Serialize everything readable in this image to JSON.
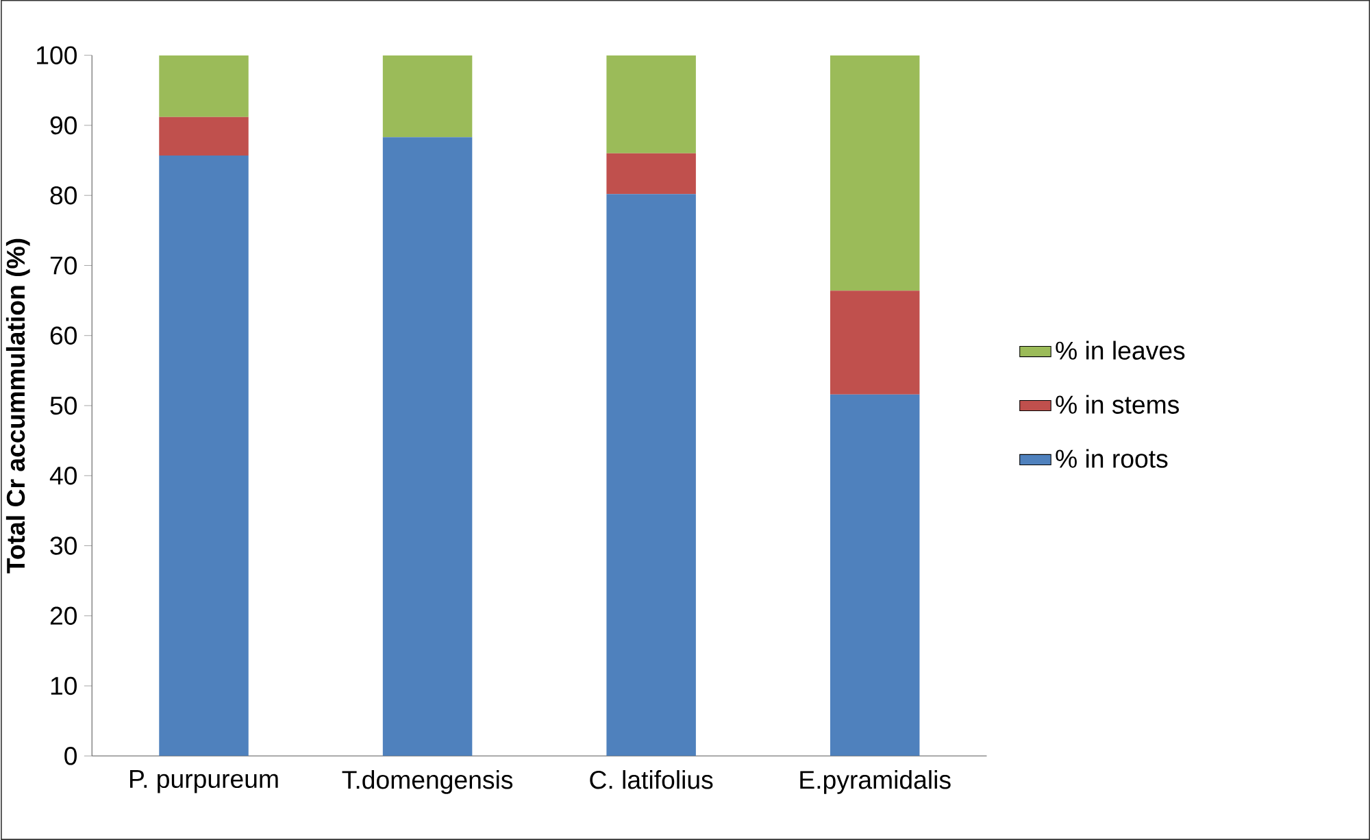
{
  "chart_data": {
    "type": "bar",
    "stacked": true,
    "ylabel": "**Total Cr accummulation (%)**",
    "categories": [
      "P. purpureum",
      "T.domengensis",
      "C. latifolius",
      "E.pyramidalis"
    ],
    "series": [
      {
        "name": "% in roots",
        "color": "#4f81bd",
        "values": [
          85.7,
          88.3,
          80.2,
          51.6
        ]
      },
      {
        "name": "% in stems",
        "color": "#c0504d",
        "values": [
          5.5,
          0,
          5.8,
          14.8
        ]
      },
      {
        "name": "% in leaves",
        "color": "#9bbb59",
        "values": [
          8.8,
          11.7,
          14.0,
          33.6
        ]
      }
    ],
    "ylim": [
      0,
      100
    ],
    "yticks": [
      0,
      10,
      20,
      30,
      40,
      50,
      60,
      70,
      80,
      90,
      100
    ],
    "grid": false,
    "legend": "right"
  }
}
